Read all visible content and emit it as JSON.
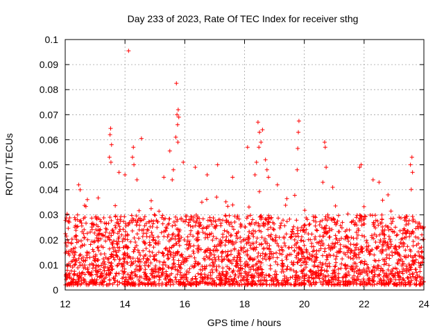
{
  "chart_data": {
    "type": "scatter",
    "title": "Day 233 of 2023, Rate Of TEC Index for receiver sthg",
    "xlabel": "GPS time / hours",
    "ylabel": "ROTI / TECUs",
    "xlim": [
      12,
      24
    ],
    "ylim": [
      0,
      0.1
    ],
    "x_ticks": [
      "12",
      "14",
      "16",
      "18",
      "20",
      "22",
      "24"
    ],
    "y_ticks": [
      "0",
      "0.01",
      "0.02",
      "0.03",
      "0.04",
      "0.05",
      "0.06",
      "0.07",
      "0.08",
      "0.09",
      "0.1"
    ],
    "x_tick_values": [
      12,
      14,
      16,
      18,
      20,
      22,
      24
    ],
    "y_tick_values": [
      0,
      0.01,
      0.02,
      0.03,
      0.04,
      0.05,
      0.06,
      0.07,
      0.08,
      0.09,
      0.1
    ],
    "grid": true,
    "marker": "+",
    "series_color": "#ff0000",
    "series": [
      {
        "name": "ROTI",
        "points": [
          [
            14.12,
            0.0955
          ],
          [
            15.72,
            0.0825
          ],
          [
            15.78,
            0.072
          ],
          [
            15.8,
            0.069
          ],
          [
            15.74,
            0.07
          ],
          [
            15.76,
            0.066
          ],
          [
            15.7,
            0.061
          ],
          [
            15.77,
            0.059
          ],
          [
            13.52,
            0.0645
          ],
          [
            13.5,
            0.062
          ],
          [
            13.55,
            0.058
          ],
          [
            13.48,
            0.053
          ],
          [
            13.53,
            0.051
          ],
          [
            14.28,
            0.057
          ],
          [
            14.25,
            0.053
          ],
          [
            14.3,
            0.05
          ],
          [
            14.55,
            0.0605
          ],
          [
            15.5,
            0.0555
          ],
          [
            15.62,
            0.048
          ],
          [
            15.58,
            0.044
          ],
          [
            15.95,
            0.051
          ],
          [
            16.35,
            0.049
          ],
          [
            18.45,
            0.067
          ],
          [
            18.5,
            0.063
          ],
          [
            18.55,
            0.059
          ],
          [
            18.6,
            0.064
          ],
          [
            18.48,
            0.057
          ],
          [
            18.7,
            0.052
          ],
          [
            18.75,
            0.048
          ],
          [
            18.8,
            0.045
          ],
          [
            18.4,
            0.051
          ],
          [
            18.35,
            0.046
          ],
          [
            19.82,
            0.0675
          ],
          [
            19.8,
            0.063
          ],
          [
            19.78,
            0.0565
          ],
          [
            19.76,
            0.048
          ],
          [
            20.68,
            0.059
          ],
          [
            20.7,
            0.057
          ],
          [
            20.73,
            0.049
          ],
          [
            20.62,
            0.043
          ],
          [
            21.85,
            0.049
          ],
          [
            21.9,
            0.05
          ],
          [
            22.3,
            0.044
          ],
          [
            22.5,
            0.043
          ],
          [
            23.55,
            0.05
          ],
          [
            23.6,
            0.053
          ],
          [
            23.62,
            0.047
          ],
          [
            18.1,
            0.057
          ],
          [
            17.1,
            0.05
          ],
          [
            17.6,
            0.045
          ],
          [
            16.75,
            0.046
          ],
          [
            14.0,
            0.046
          ],
          [
            13.8,
            0.047
          ],
          [
            12.45,
            0.042
          ],
          [
            12.5,
            0.04
          ],
          [
            20.95,
            0.041
          ],
          [
            22.8,
            0.038
          ],
          [
            15.3,
            0.045
          ],
          [
            14.4,
            0.044
          ],
          [
            19.1,
            0.042
          ]
        ]
      }
    ],
    "background_noise": {
      "base_min": 0.002,
      "base_max": 0.03,
      "description": "dense band of ROTI values across the full time span"
    }
  }
}
